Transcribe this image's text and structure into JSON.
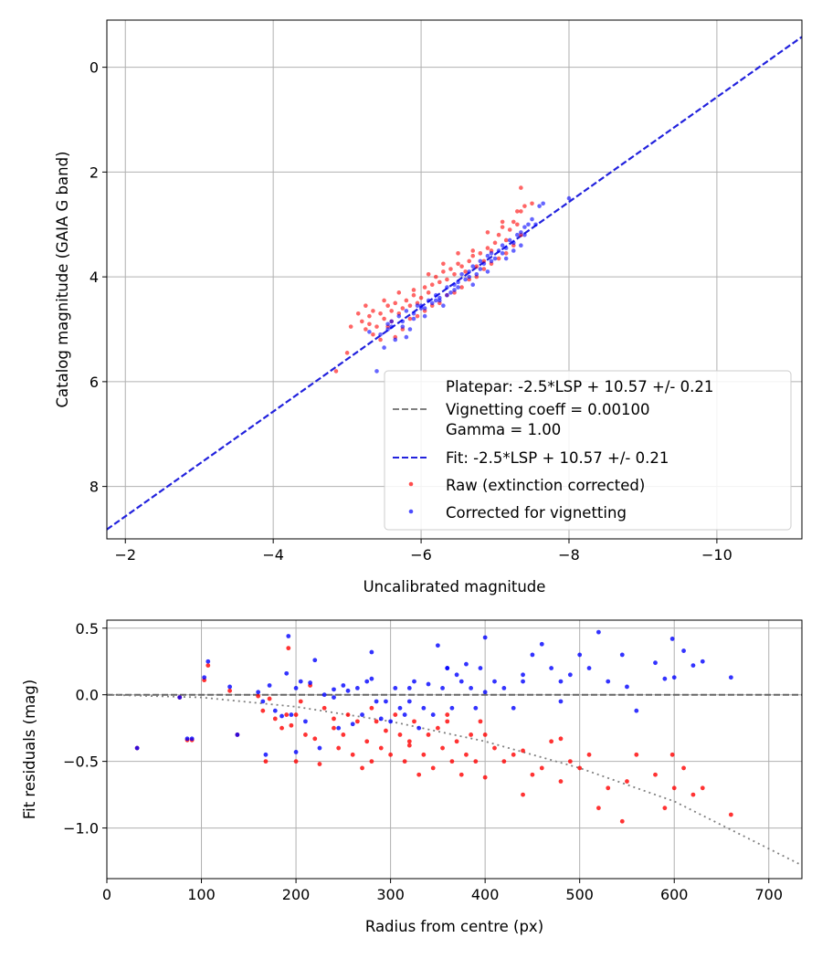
{
  "chart_data": [
    {
      "type": "scatter",
      "xlabel": "Uncalibrated magnitude",
      "ylabel": "Catalog magnitude (GAIA G band)",
      "xlim": [
        -1.75,
        -11.15
      ],
      "ylim": [
        9.0,
        -0.9
      ],
      "x_inverted": true,
      "y_inverted": true,
      "grid": true,
      "x_ticks": [
        -2,
        -4,
        -6,
        -8,
        -10
      ],
      "x_tick_labels": [
        "−2",
        "−4",
        "−6",
        "−8",
        "−10"
      ],
      "y_ticks": [
        0,
        2,
        4,
        6,
        8
      ],
      "y_tick_labels": [
        "0",
        "2",
        "4",
        "6",
        "8"
      ],
      "legend_position": "lower-right",
      "legend": [
        {
          "label": "Platepar: -2.5*LSP + 10.57 +/- 0.21",
          "style": "none"
        },
        {
          "label": "Vignetting coeff = 0.00100",
          "style": "dashed",
          "color": "#808080"
        },
        {
          "label": "Gamma = 1.00",
          "style": "none"
        },
        {
          "label": "Fit: -2.5*LSP + 10.57 +/- 0.21",
          "style": "dashed",
          "color": "#2222dd"
        },
        {
          "label": "Raw (extinction corrected)",
          "style": "marker",
          "color": "#ff0000"
        },
        {
          "label": "Corrected for vignetting",
          "style": "marker",
          "color": "#0000ff"
        }
      ],
      "fit_line": {
        "slope": 1.0,
        "intercept": 10.57,
        "color": "#2222dd"
      },
      "series": [
        {
          "name": "Raw (extinction corrected)",
          "color": "#ff0000",
          "x": [
            -4.85,
            -5.0,
            -5.05,
            -5.15,
            -5.2,
            -5.25,
            -5.3,
            -5.3,
            -5.35,
            -5.4,
            -5.45,
            -5.5,
            -5.55,
            -5.6,
            -5.6,
            -5.65,
            -5.7,
            -5.75,
            -5.8,
            -5.85,
            -5.9,
            -5.95,
            -6.0,
            -6.05,
            -6.1,
            -6.15,
            -6.2,
            -6.25,
            -6.3,
            -6.35,
            -6.4,
            -6.45,
            -6.5,
            -6.55,
            -6.6,
            -6.65,
            -6.7,
            -6.75,
            -6.8,
            -6.85,
            -6.9,
            -6.95,
            -7.0,
            -7.05,
            -7.1,
            -7.15,
            -7.2,
            -7.25,
            -7.3,
            -7.35,
            -7.4,
            -7.5,
            -5.35,
            -5.45,
            -5.55,
            -5.65,
            -5.75,
            -5.85,
            -5.95,
            -6.05,
            -6.15,
            -6.25,
            -6.35,
            -6.45,
            -6.55,
            -6.65,
            -6.75,
            -6.85,
            -6.95,
            -7.05,
            -7.15,
            -7.25,
            -7.35,
            -5.25,
            -5.5,
            -5.7,
            -5.9,
            -6.1,
            -6.3,
            -6.5,
            -6.7,
            -6.9,
            -7.1,
            -7.3,
            -7.35
          ],
          "y": [
            5.8,
            5.45,
            4.95,
            4.7,
            4.85,
            4.55,
            4.9,
            4.75,
            4.65,
            4.95,
            4.7,
            4.8,
            4.55,
            4.85,
            4.65,
            4.5,
            4.7,
            4.6,
            4.45,
            4.55,
            4.35,
            4.5,
            4.4,
            4.2,
            4.3,
            4.15,
            4.0,
            4.1,
            3.9,
            4.05,
            3.85,
            3.95,
            3.75,
            3.8,
            3.9,
            3.7,
            3.6,
            3.8,
            3.55,
            3.7,
            3.45,
            3.5,
            3.35,
            3.2,
            3.05,
            3.3,
            3.1,
            2.95,
            3.0,
            2.75,
            2.65,
            2.6,
            5.1,
            5.2,
            4.95,
            5.15,
            5.0,
            4.8,
            4.75,
            4.65,
            4.55,
            4.5,
            4.35,
            4.3,
            4.2,
            4.05,
            4.0,
            3.85,
            3.75,
            3.65,
            3.55,
            3.4,
            3.2,
            5.0,
            4.45,
            4.3,
            4.25,
            3.95,
            3.75,
            3.55,
            3.5,
            3.15,
            2.95,
            2.75,
            2.3
          ]
        },
        {
          "name": "Corrected for vignetting",
          "color": "#0000ff",
          "x": [
            -5.4,
            -5.5,
            -5.55,
            -5.6,
            -5.65,
            -5.7,
            -5.75,
            -5.8,
            -5.85,
            -5.9,
            -5.95,
            -6.0,
            -6.05,
            -6.1,
            -6.15,
            -6.2,
            -6.25,
            -6.3,
            -6.35,
            -6.4,
            -6.45,
            -6.5,
            -6.55,
            -6.6,
            -6.65,
            -6.7,
            -6.75,
            -6.8,
            -6.85,
            -6.9,
            -6.95,
            -7.0,
            -7.05,
            -7.1,
            -7.15,
            -7.2,
            -7.25,
            -7.3,
            -7.35,
            -7.4,
            -7.45,
            -7.5,
            -7.6,
            -7.65,
            -8.0,
            -5.45,
            -5.6,
            -5.75,
            -5.9,
            -6.05,
            -6.2,
            -6.35,
            -6.5,
            -6.65,
            -6.8,
            -6.95,
            -7.1,
            -7.25,
            -7.4,
            -5.3,
            -5.55,
            -5.8,
            -6.0,
            -6.25,
            -6.45,
            -6.7,
            -6.9,
            -7.15,
            -7.35,
            -7.55
          ],
          "y": [
            5.8,
            5.35,
            5.0,
            4.85,
            5.2,
            4.75,
            4.95,
            4.65,
            5.0,
            4.7,
            4.55,
            4.6,
            4.75,
            4.45,
            4.5,
            4.35,
            4.4,
            4.55,
            4.2,
            4.3,
            4.15,
            4.1,
            3.95,
            4.05,
            3.9,
            3.8,
            3.95,
            3.7,
            3.75,
            3.6,
            3.55,
            3.65,
            3.5,
            3.4,
            3.45,
            3.3,
            3.35,
            3.2,
            3.15,
            3.05,
            3.0,
            2.9,
            2.65,
            2.6,
            2.5,
            5.1,
            4.95,
            4.85,
            4.8,
            4.6,
            4.45,
            4.35,
            4.2,
            4.0,
            3.85,
            3.7,
            3.55,
            3.5,
            3.2,
            5.05,
            4.9,
            5.15,
            4.55,
            4.45,
            4.25,
            4.15,
            3.9,
            3.65,
            3.4,
            3.0
          ]
        }
      ]
    },
    {
      "type": "scatter",
      "xlabel": "Radius from centre (px)",
      "ylabel": "Fit residuals (mag)",
      "xlim": [
        0,
        735
      ],
      "ylim": [
        -1.38,
        0.56
      ],
      "grid": true,
      "x_ticks": [
        0,
        100,
        200,
        300,
        400,
        500,
        600,
        700
      ],
      "x_tick_labels": [
        "0",
        "100",
        "200",
        "300",
        "400",
        "500",
        "600",
        "700"
      ],
      "y_ticks": [
        0.5,
        0.0,
        -0.5,
        -1.0
      ],
      "y_tick_labels": [
        "0.5",
        "0.0",
        "−0.5",
        "−1.0"
      ],
      "reference_lines": [
        {
          "style": "dashed",
          "color": "#666666",
          "y": 0
        },
        {
          "style": "dotted",
          "color": "#808080",
          "curve": "vignetting",
          "x": [
            0,
            100,
            200,
            300,
            400,
            500,
            600,
            735
          ],
          "y": [
            0.0,
            -0.02,
            -0.09,
            -0.2,
            -0.35,
            -0.55,
            -0.8,
            -1.28
          ]
        }
      ],
      "series": [
        {
          "name": "Raw (extinction corrected)",
          "color": "#ff0000",
          "x": [
            32,
            77,
            85,
            90,
            103,
            107,
            130,
            138,
            160,
            165,
            168,
            172,
            178,
            185,
            190,
            192,
            195,
            200,
            205,
            210,
            215,
            220,
            225,
            230,
            240,
            245,
            250,
            255,
            260,
            265,
            270,
            275,
            280,
            285,
            290,
            295,
            300,
            305,
            310,
            315,
            320,
            325,
            330,
            335,
            340,
            345,
            350,
            355,
            360,
            365,
            370,
            375,
            380,
            385,
            390,
            395,
            400,
            410,
            420,
            430,
            440,
            450,
            460,
            470,
            480,
            490,
            500,
            510,
            520,
            530,
            545,
            550,
            560,
            580,
            590,
            598,
            600,
            610,
            620,
            630,
            660,
            200,
            240,
            280,
            320,
            360,
            400,
            440,
            480
          ],
          "y": [
            -0.4,
            -0.02,
            -0.34,
            -0.34,
            0.11,
            0.22,
            0.03,
            -0.3,
            -0.01,
            -0.12,
            -0.5,
            -0.03,
            -0.18,
            -0.25,
            -0.15,
            0.35,
            -0.23,
            -0.5,
            -0.05,
            -0.3,
            0.07,
            -0.33,
            -0.52,
            -0.1,
            -0.18,
            -0.4,
            -0.3,
            -0.15,
            -0.45,
            -0.2,
            -0.55,
            -0.35,
            -0.5,
            -0.2,
            -0.4,
            -0.27,
            -0.45,
            -0.15,
            -0.3,
            -0.5,
            -0.38,
            -0.2,
            -0.6,
            -0.45,
            -0.3,
            -0.55,
            -0.25,
            -0.4,
            -0.15,
            -0.5,
            -0.35,
            -0.6,
            -0.45,
            -0.3,
            -0.5,
            -0.2,
            -0.62,
            -0.4,
            -0.5,
            -0.45,
            -0.75,
            -0.6,
            -0.55,
            -0.35,
            -0.65,
            -0.5,
            -0.55,
            -0.45,
            -0.85,
            -0.7,
            -0.95,
            -0.65,
            -0.45,
            -0.6,
            -0.85,
            -0.45,
            -0.7,
            -0.55,
            -0.75,
            -0.7,
            -0.9,
            -0.15,
            -0.25,
            -0.1,
            -0.35,
            -0.2,
            -0.3,
            -0.42,
            -0.33
          ]
        },
        {
          "name": "Corrected for vignetting",
          "color": "#0000ff",
          "x": [
            32,
            77,
            85,
            90,
            103,
            107,
            130,
            138,
            160,
            165,
            168,
            172,
            178,
            185,
            190,
            192,
            195,
            200,
            205,
            210,
            215,
            220,
            225,
            230,
            240,
            245,
            250,
            255,
            260,
            265,
            270,
            275,
            280,
            285,
            290,
            295,
            300,
            305,
            310,
            315,
            320,
            325,
            330,
            335,
            340,
            345,
            350,
            355,
            360,
            365,
            370,
            375,
            380,
            385,
            390,
            395,
            400,
            410,
            420,
            430,
            440,
            450,
            460,
            470,
            480,
            490,
            500,
            510,
            520,
            530,
            545,
            550,
            560,
            580,
            590,
            598,
            600,
            610,
            620,
            630,
            660,
            200,
            240,
            280,
            320,
            360,
            400,
            440,
            480
          ],
          "y": [
            -0.4,
            -0.02,
            -0.33,
            -0.33,
            0.13,
            0.25,
            0.06,
            -0.3,
            0.02,
            -0.05,
            -0.45,
            0.07,
            -0.12,
            -0.16,
            0.16,
            0.44,
            -0.15,
            -0.43,
            0.1,
            -0.2,
            0.09,
            0.26,
            -0.4,
            0.0,
            0.04,
            -0.25,
            0.07,
            0.03,
            -0.22,
            0.05,
            -0.15,
            0.1,
            0.32,
            -0.05,
            -0.18,
            -0.05,
            -0.2,
            0.05,
            -0.1,
            -0.15,
            0.05,
            0.1,
            -0.25,
            -0.1,
            0.08,
            -0.15,
            0.37,
            0.05,
            0.2,
            -0.1,
            0.15,
            0.1,
            0.23,
            0.05,
            -0.1,
            0.2,
            0.43,
            0.1,
            0.05,
            -0.1,
            0.15,
            0.3,
            0.38,
            0.2,
            0.1,
            0.15,
            0.3,
            0.2,
            0.47,
            0.1,
            0.3,
            0.06,
            -0.12,
            0.24,
            0.12,
            0.42,
            0.13,
            0.33,
            0.22,
            0.25,
            0.13,
            0.05,
            -0.02,
            0.12,
            -0.05,
            0.2,
            0.02,
            0.1,
            -0.05
          ]
        }
      ]
    }
  ]
}
